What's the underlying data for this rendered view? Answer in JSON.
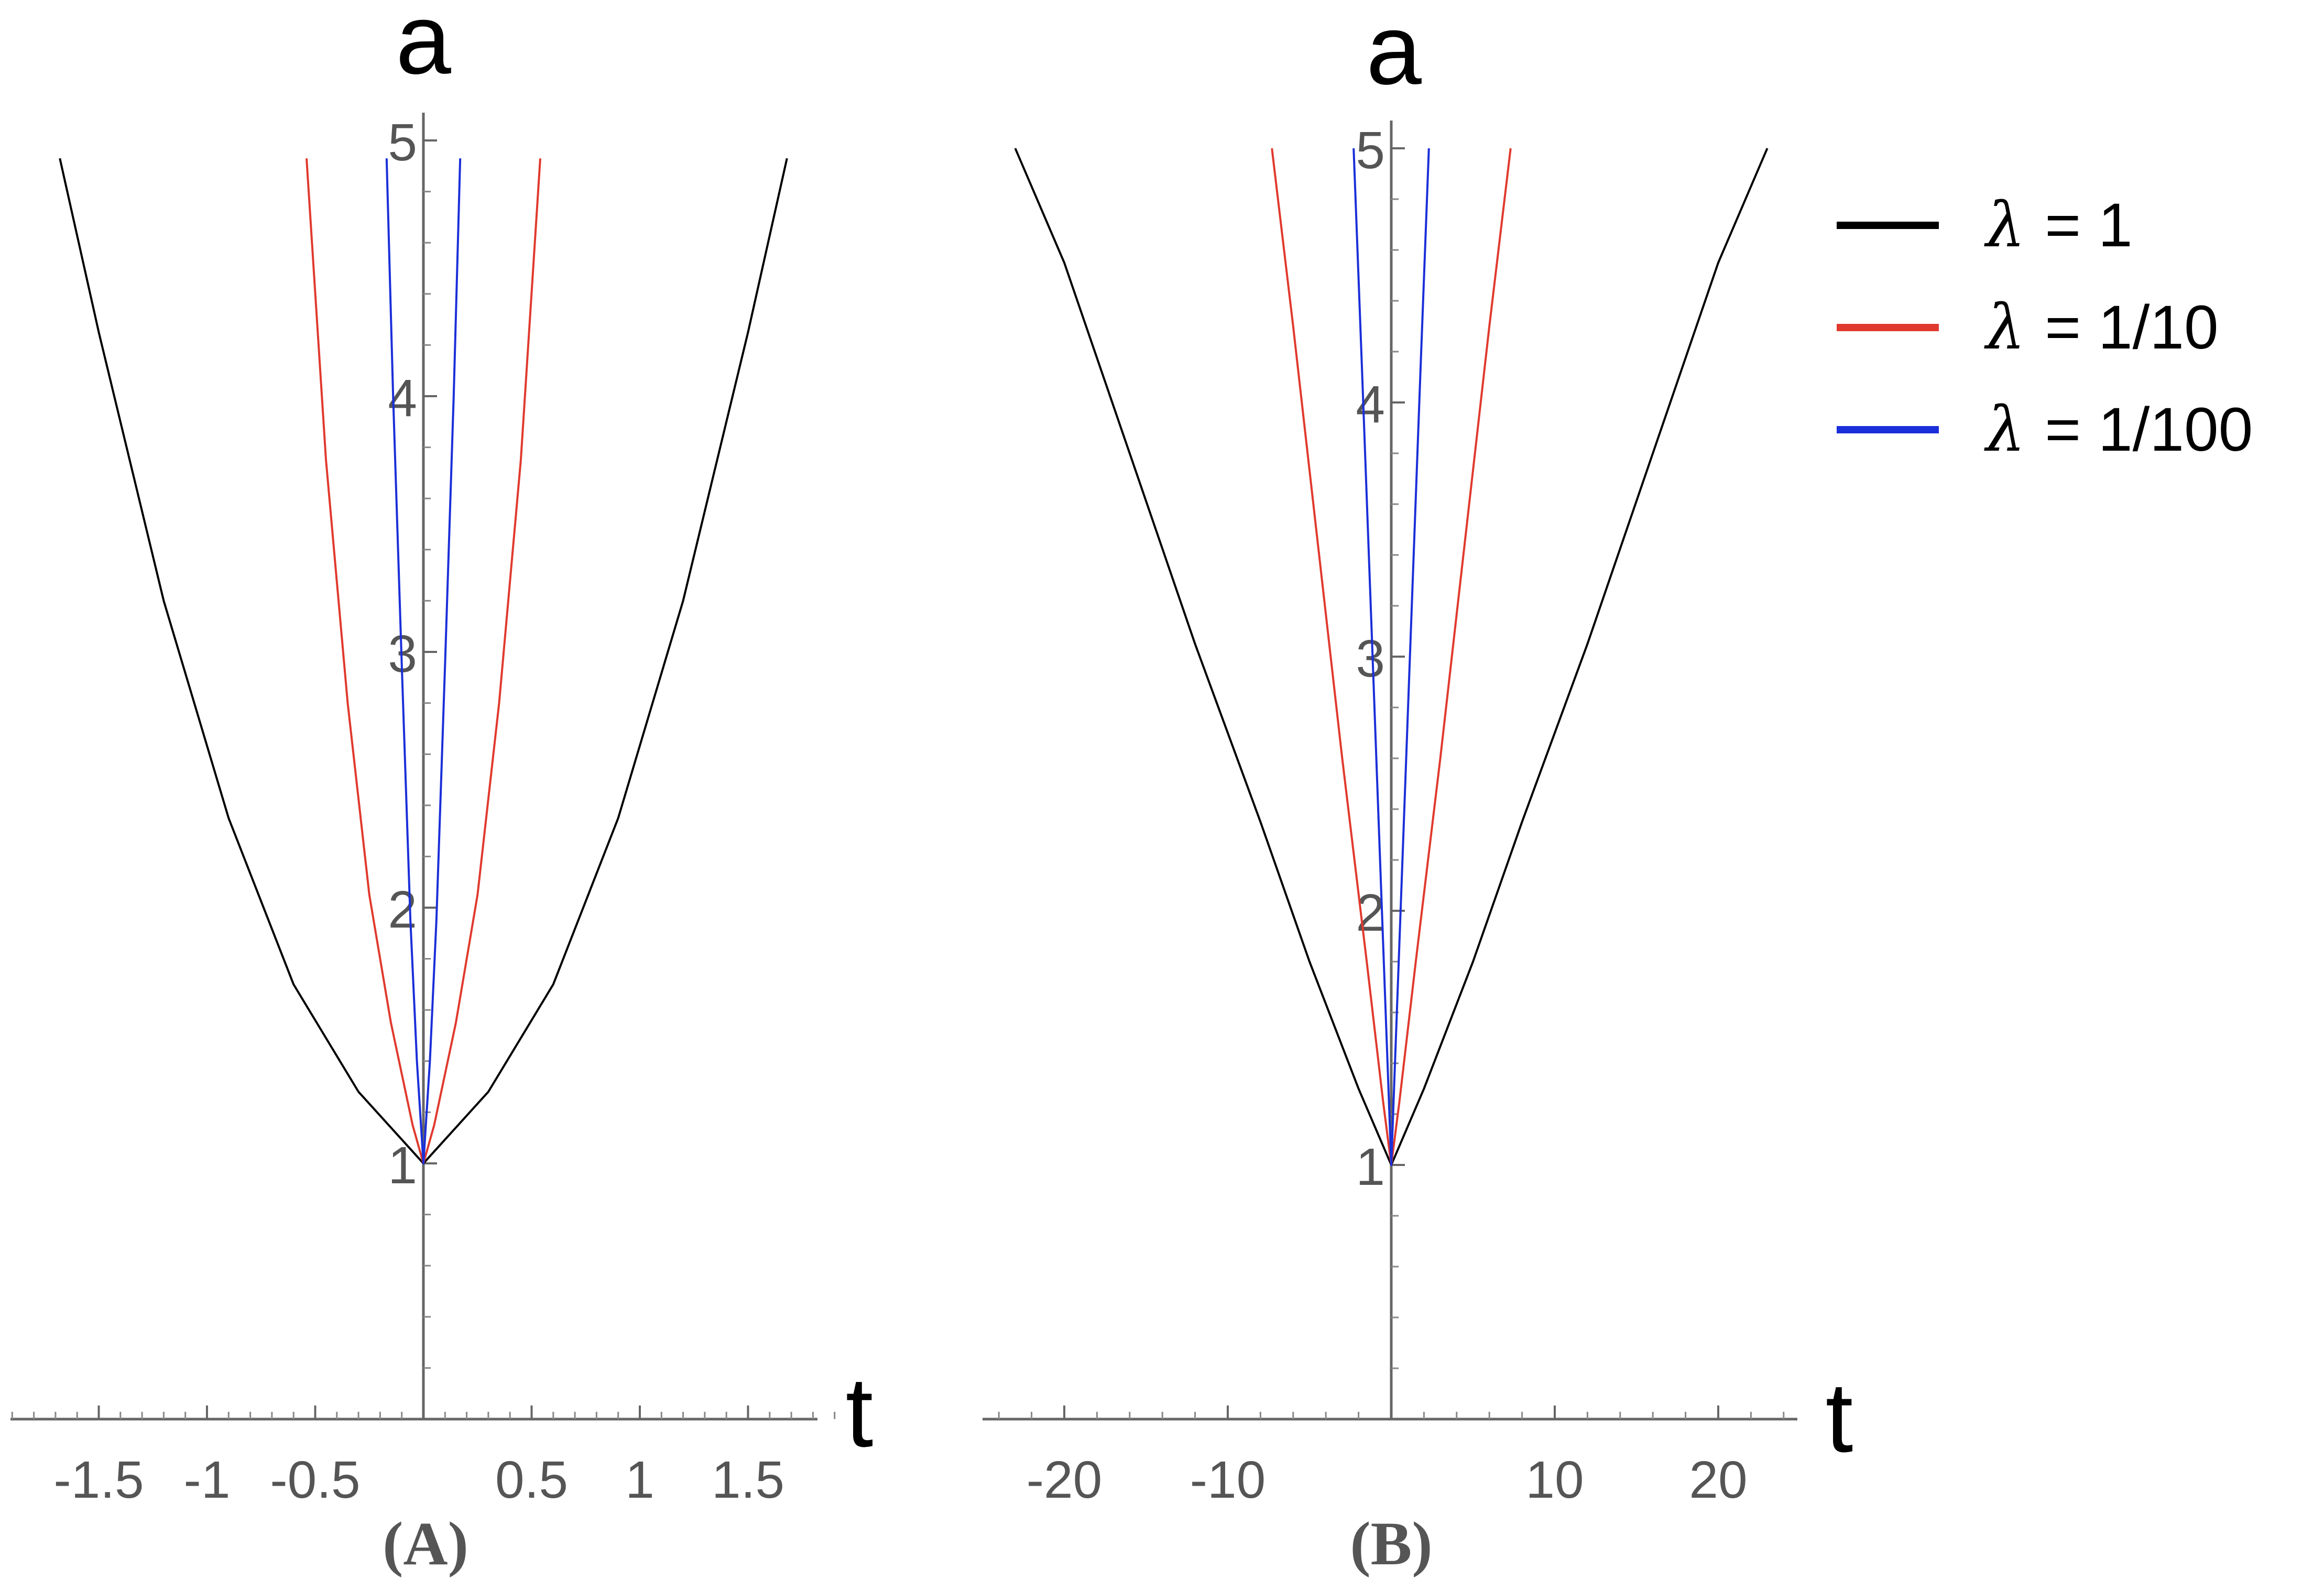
{
  "chart_data": [
    {
      "type": "line",
      "panel_label": "(A)",
      "xlabel": "t",
      "ylabel": "a",
      "xlim": [
        -1.92,
        1.92
      ],
      "ylim": [
        0,
        5.1
      ],
      "x_ticks": [
        -1.5,
        -1,
        -0.5,
        0.5,
        1,
        1.5
      ],
      "x_tick_labels": [
        "-1.5",
        "-1",
        "-0.5",
        "0.5",
        "1",
        "1.5"
      ],
      "y_ticks": [
        1,
        2,
        3,
        4,
        5
      ],
      "y_tick_labels": [
        "1",
        "2",
        "3",
        "4",
        "5"
      ],
      "series": [
        {
          "name": "λ = 1",
          "color": "#000000",
          "x": [
            -1.68,
            -1.5,
            -1.2,
            -0.9,
            -0.6,
            -0.3,
            0,
            0.3,
            0.6,
            0.9,
            1.2,
            1.5,
            1.68
          ],
          "values": [
            4.93,
            4.25,
            3.2,
            2.35,
            1.7,
            1.28,
            1.0,
            1.28,
            1.7,
            2.35,
            3.2,
            4.25,
            4.93
          ]
        },
        {
          "name": "λ = 1/10",
          "color": "#e03a2e",
          "x": [
            -0.54,
            -0.45,
            -0.35,
            -0.25,
            -0.15,
            -0.05,
            0,
            0.05,
            0.15,
            0.25,
            0.35,
            0.45,
            0.54
          ],
          "values": [
            4.93,
            3.75,
            2.8,
            2.05,
            1.55,
            1.15,
            1.0,
            1.15,
            1.55,
            2.05,
            2.8,
            3.75,
            4.93
          ]
        },
        {
          "name": "λ = 1/100",
          "color": "#1a2fd9",
          "x": [
            -0.17,
            -0.14,
            -0.1,
            -0.06,
            -0.03,
            0,
            0.03,
            0.06,
            0.1,
            0.14,
            0.17
          ],
          "values": [
            4.93,
            4.0,
            2.95,
            1.95,
            1.4,
            1.0,
            1.4,
            1.95,
            2.95,
            4.0,
            4.93
          ]
        }
      ]
    },
    {
      "type": "line",
      "panel_label": "(B)",
      "xlabel": "t",
      "ylabel": "a",
      "xlim": [
        -25,
        25
      ],
      "ylim": [
        0,
        5.1
      ],
      "x_ticks": [
        -20,
        -10,
        10,
        20
      ],
      "x_tick_labels": [
        "-20",
        "-10",
        "10",
        "20"
      ],
      "y_ticks": [
        1,
        2,
        3,
        4,
        5
      ],
      "y_tick_labels": [
        "1",
        "2",
        "3",
        "4",
        "5"
      ],
      "series": [
        {
          "name": "λ = 1",
          "color": "#000000",
          "x": [
            -23,
            -20,
            -16,
            -12,
            -8,
            -5,
            -2,
            0,
            2,
            5,
            8,
            12,
            16,
            20,
            23
          ],
          "values": [
            5.0,
            4.55,
            3.8,
            3.05,
            2.35,
            1.8,
            1.3,
            1.0,
            1.3,
            1.8,
            2.35,
            3.05,
            3.8,
            4.55,
            5.0
          ]
        },
        {
          "name": "λ = 1/10",
          "color": "#e03a2e",
          "x": [
            -7.3,
            -6,
            -4.5,
            -3,
            -1.5,
            -0.5,
            0,
            0.5,
            1.5,
            3,
            4.5,
            6,
            7.3
          ],
          "values": [
            5.0,
            4.3,
            3.45,
            2.6,
            1.8,
            1.25,
            1.0,
            1.25,
            1.8,
            2.6,
            3.45,
            4.3,
            5.0
          ]
        },
        {
          "name": "λ = 1/100",
          "color": "#1a2fd9",
          "x": [
            -2.3,
            -1.8,
            -1.2,
            -0.6,
            -0.2,
            0,
            0.2,
            0.6,
            1.2,
            1.8,
            2.3
          ],
          "values": [
            5.0,
            4.15,
            3.1,
            2.05,
            1.35,
            1.0,
            1.35,
            2.05,
            3.1,
            4.15,
            5.0
          ]
        }
      ]
    }
  ],
  "legend": {
    "placement": "right",
    "entries": [
      {
        "symbol": "λ",
        "text": "= 1",
        "color": "#000000"
      },
      {
        "symbol": "λ",
        "text": "= 1/10",
        "color": "#e03a2e"
      },
      {
        "symbol": "λ",
        "text": "= 1/100",
        "color": "#1a2fd9"
      }
    ]
  }
}
